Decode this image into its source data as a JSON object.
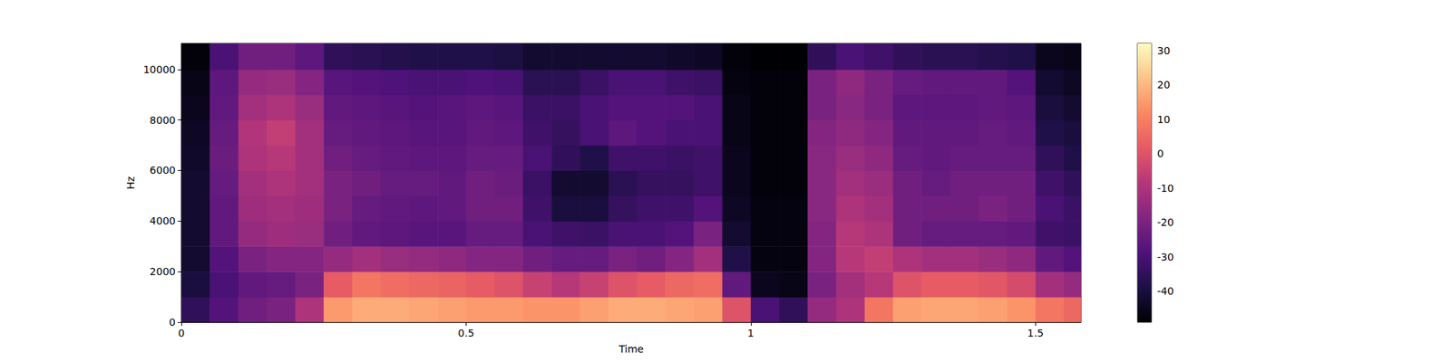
{
  "chart_data": {
    "type": "heatmap",
    "x_label": "Time",
    "y_label": "Hz",
    "xlim": [
      0,
      1.58
    ],
    "ylim": [
      0,
      11025
    ],
    "xticks": [
      0,
      0.5,
      1,
      1.5
    ],
    "yticks": [
      0,
      2000,
      4000,
      6000,
      8000,
      10000
    ],
    "time_edges": [
      0,
      0.05,
      0.1,
      0.15,
      0.2,
      0.25,
      0.3,
      0.35,
      0.4,
      0.45,
      0.5,
      0.55,
      0.6,
      0.65,
      0.7,
      0.75,
      0.8,
      0.85,
      0.9,
      0.95,
      1.0,
      1.05,
      1.1,
      1.15,
      1.2,
      1.25,
      1.3,
      1.35,
      1.4,
      1.45,
      1.5,
      1.55,
      1.58
    ],
    "freq_edges": [
      0,
      1000,
      2000,
      3000,
      4000,
      5000,
      6000,
      7000,
      8000,
      9000,
      10000,
      11025
    ],
    "values": [
      [
        -35,
        -40,
        -42,
        -42,
        -42,
        -42,
        -43,
        -44,
        -45,
        -46,
        -48
      ],
      [
        -28,
        -30,
        -28,
        -25,
        -25,
        -24,
        -23,
        -24,
        -25,
        -26,
        -30
      ],
      [
        -22,
        -25,
        -20,
        -15,
        -13,
        -12,
        -10,
        -9,
        -12,
        -15,
        -22
      ],
      [
        -20,
        -24,
        -18,
        -13,
        -12,
        -10,
        -8,
        -6,
        -10,
        -14,
        -22
      ],
      [
        -10,
        -20,
        -18,
        -14,
        -13,
        -12,
        -12,
        -12,
        -14,
        -18,
        -26
      ],
      [
        15,
        2,
        -15,
        -22,
        -20,
        -20,
        -22,
        -24,
        -25,
        -27,
        -35
      ],
      [
        18,
        8,
        -12,
        -25,
        -24,
        -22,
        -24,
        -25,
        -26,
        -28,
        -36
      ],
      [
        18,
        6,
        -14,
        -26,
        -25,
        -24,
        -25,
        -26,
        -27,
        -29,
        -37
      ],
      [
        17,
        5,
        -15,
        -27,
        -26,
        -24,
        -26,
        -27,
        -28,
        -30,
        -38
      ],
      [
        16,
        4,
        -16,
        -27,
        -25,
        -25,
        -26,
        -27,
        -27,
        -30,
        -38
      ],
      [
        15,
        2,
        -18,
        -24,
        -22,
        -22,
        -24,
        -25,
        -26,
        -29,
        -38
      ],
      [
        15,
        0,
        -18,
        -24,
        -22,
        -23,
        -24,
        -26,
        -27,
        -30,
        -39
      ],
      [
        14,
        -5,
        -22,
        -30,
        -32,
        -33,
        -30,
        -32,
        -33,
        -36,
        -42
      ],
      [
        14,
        -8,
        -24,
        -32,
        -40,
        -42,
        -35,
        -34,
        -33,
        -36,
        -42
      ],
      [
        16,
        -5,
        -24,
        -33,
        -40,
        -42,
        -38,
        -30,
        -30,
        -33,
        -42
      ],
      [
        18,
        0,
        -20,
        -30,
        -34,
        -36,
        -32,
        -26,
        -28,
        -30,
        -42
      ],
      [
        18,
        2,
        -22,
        -30,
        -32,
        -34,
        -32,
        -28,
        -28,
        -30,
        -42
      ],
      [
        17,
        5,
        -18,
        -28,
        -32,
        -34,
        -33,
        -30,
        -28,
        -32,
        -43
      ],
      [
        16,
        6,
        -12,
        -20,
        -28,
        -32,
        -32,
        -30,
        -30,
        -33,
        -44
      ],
      [
        0,
        -25,
        -38,
        -42,
        -44,
        -45,
        -45,
        -46,
        -46,
        -47,
        -48
      ],
      [
        -30,
        -45,
        -47,
        -47,
        -47,
        -48,
        -48,
        -48,
        -48,
        -48,
        -49
      ],
      [
        -35,
        -46,
        -47,
        -47,
        -47,
        -48,
        -48,
        -48,
        -48,
        -48,
        -49
      ],
      [
        -15,
        -20,
        -18,
        -18,
        -17,
        -17,
        -17,
        -18,
        -20,
        -20,
        -35
      ],
      [
        -10,
        -12,
        -8,
        -8,
        -10,
        -12,
        -14,
        -16,
        -17,
        -16,
        -30
      ],
      [
        8,
        -8,
        -6,
        -10,
        -12,
        -14,
        -16,
        -18,
        -20,
        -20,
        -32
      ],
      [
        16,
        0,
        -10,
        -22,
        -22,
        -22,
        -24,
        -25,
        -26,
        -24,
        -35
      ],
      [
        17,
        2,
        -12,
        -24,
        -22,
        -24,
        -25,
        -25,
        -26,
        -25,
        -36
      ],
      [
        17,
        2,
        -12,
        -24,
        -22,
        -22,
        -24,
        -25,
        -26,
        -25,
        -36
      ],
      [
        16,
        1,
        -14,
        -24,
        -20,
        -22,
        -24,
        -24,
        -25,
        -25,
        -37
      ],
      [
        14,
        -2,
        -16,
        -25,
        -22,
        -22,
        -24,
        -25,
        -26,
        -28,
        -38
      ],
      [
        8,
        -12,
        -25,
        -32,
        -30,
        -32,
        -35,
        -38,
        -40,
        -42,
        -45
      ],
      [
        5,
        -15,
        -28,
        -33,
        -33,
        -35,
        -38,
        -40,
        -42,
        -44,
        -46
      ]
    ],
    "colorbar": {
      "range": [
        -49,
        32
      ],
      "ticks": [
        -40,
        -30,
        -20,
        -10,
        0,
        10,
        20,
        30
      ]
    }
  }
}
